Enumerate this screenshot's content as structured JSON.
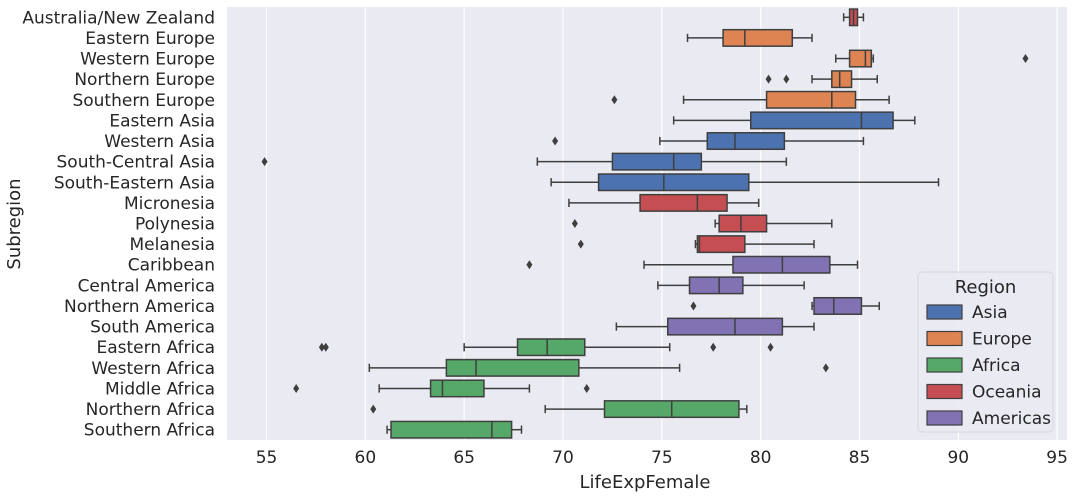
{
  "chart_data": {
    "type": "boxplot",
    "orientation": "horizontal",
    "xlabel": "LifeExpFemale",
    "ylabel": "Subregion",
    "xlim": [
      53,
      95.5
    ],
    "xticks": [
      55,
      60,
      65,
      70,
      75,
      80,
      85,
      90,
      95
    ],
    "grid": true,
    "legend": {
      "title": "Region",
      "placement": "bottom-right",
      "entries": [
        {
          "name": "Asia",
          "color": "#4c72b0"
        },
        {
          "name": "Europe",
          "color": "#dd8452"
        },
        {
          "name": "Africa",
          "color": "#55a868"
        },
        {
          "name": "Oceania",
          "color": "#c44e52"
        },
        {
          "name": "Americas",
          "color": "#8172b3"
        }
      ]
    },
    "boxes": [
      {
        "category": "Australia/New Zealand",
        "region": "Oceania",
        "whislo": 84.2,
        "q1": 84.5,
        "med": 84.7,
        "q3": 84.9,
        "whishi": 85.2,
        "fliers": []
      },
      {
        "category": "Eastern Europe",
        "region": "Europe",
        "whislo": 76.3,
        "q1": 78.1,
        "med": 79.2,
        "q3": 81.6,
        "whishi": 82.6,
        "fliers": []
      },
      {
        "category": "Western Europe",
        "region": "Europe",
        "whislo": 83.8,
        "q1": 84.5,
        "med": 85.3,
        "q3": 85.6,
        "whishi": 85.7,
        "fliers": [
          93.4
        ]
      },
      {
        "category": "Northern Europe",
        "region": "Europe",
        "whislo": 82.6,
        "q1": 83.6,
        "med": 84.0,
        "q3": 84.6,
        "whishi": 85.9,
        "fliers": [
          80.4,
          81.3
        ]
      },
      {
        "category": "Southern Europe",
        "region": "Europe",
        "whislo": 76.1,
        "q1": 80.3,
        "med": 83.6,
        "q3": 84.8,
        "whishi": 86.5,
        "fliers": [
          72.6
        ]
      },
      {
        "category": "Eastern Asia",
        "region": "Asia",
        "whislo": 75.6,
        "q1": 79.5,
        "med": 85.1,
        "q3": 86.7,
        "whishi": 87.8,
        "fliers": []
      },
      {
        "category": "Western Asia",
        "region": "Asia",
        "whislo": 74.9,
        "q1": 77.3,
        "med": 78.7,
        "q3": 81.2,
        "whishi": 85.2,
        "fliers": [
          69.6
        ]
      },
      {
        "category": "South-Central Asia",
        "region": "Asia",
        "whislo": 68.7,
        "q1": 72.5,
        "med": 75.6,
        "q3": 77.0,
        "whishi": 81.3,
        "fliers": [
          54.9
        ]
      },
      {
        "category": "South-Eastern Asia",
        "region": "Asia",
        "whislo": 69.4,
        "q1": 71.8,
        "med": 75.1,
        "q3": 79.4,
        "whishi": 89.0,
        "fliers": []
      },
      {
        "category": "Micronesia",
        "region": "Oceania",
        "whislo": 70.3,
        "q1": 73.9,
        "med": 76.8,
        "q3": 78.3,
        "whishi": 79.9,
        "fliers": []
      },
      {
        "category": "Polynesia",
        "region": "Oceania",
        "whislo": 77.7,
        "q1": 77.9,
        "med": 79.0,
        "q3": 80.3,
        "whishi": 83.6,
        "fliers": [
          70.6
        ]
      },
      {
        "category": "Melanesia",
        "region": "Oceania",
        "whislo": 76.7,
        "q1": 76.8,
        "med": 76.9,
        "q3": 79.2,
        "whishi": 82.7,
        "fliers": [
          70.9
        ]
      },
      {
        "category": "Caribbean",
        "region": "Americas",
        "whislo": 74.1,
        "q1": 78.6,
        "med": 81.1,
        "q3": 83.5,
        "whishi": 84.9,
        "fliers": [
          68.3
        ]
      },
      {
        "category": "Central America",
        "region": "Americas",
        "whislo": 74.8,
        "q1": 76.4,
        "med": 77.9,
        "q3": 79.1,
        "whishi": 82.2,
        "fliers": []
      },
      {
        "category": "Northern America",
        "region": "Americas",
        "whislo": 82.6,
        "q1": 82.7,
        "med": 83.7,
        "q3": 85.1,
        "whishi": 86.0,
        "fliers": [
          76.6
        ]
      },
      {
        "category": "South America",
        "region": "Americas",
        "whislo": 72.7,
        "q1": 75.3,
        "med": 78.7,
        "q3": 81.1,
        "whishi": 82.7,
        "fliers": []
      },
      {
        "category": "Eastern Africa",
        "region": "Africa",
        "whislo": 65.0,
        "q1": 67.7,
        "med": 69.2,
        "q3": 71.1,
        "whishi": 75.4,
        "fliers": [
          57.8,
          58.0,
          77.6,
          80.5
        ]
      },
      {
        "category": "Western Africa",
        "region": "Africa",
        "whislo": 60.2,
        "q1": 64.1,
        "med": 65.6,
        "q3": 70.8,
        "whishi": 75.9,
        "fliers": [
          83.3
        ]
      },
      {
        "category": "Middle Africa",
        "region": "Africa",
        "whislo": 60.7,
        "q1": 63.3,
        "med": 63.9,
        "q3": 66.0,
        "whishi": 68.3,
        "fliers": [
          56.5,
          71.2
        ]
      },
      {
        "category": "Northern Africa",
        "region": "Africa",
        "whislo": 69.1,
        "q1": 72.1,
        "med": 75.5,
        "q3": 78.9,
        "whishi": 79.3,
        "fliers": [
          60.4
        ]
      },
      {
        "category": "Southern Africa",
        "region": "Africa",
        "whislo": 61.1,
        "q1": 61.3,
        "med": 66.4,
        "q3": 67.4,
        "whishi": 67.9,
        "fliers": []
      }
    ]
  }
}
